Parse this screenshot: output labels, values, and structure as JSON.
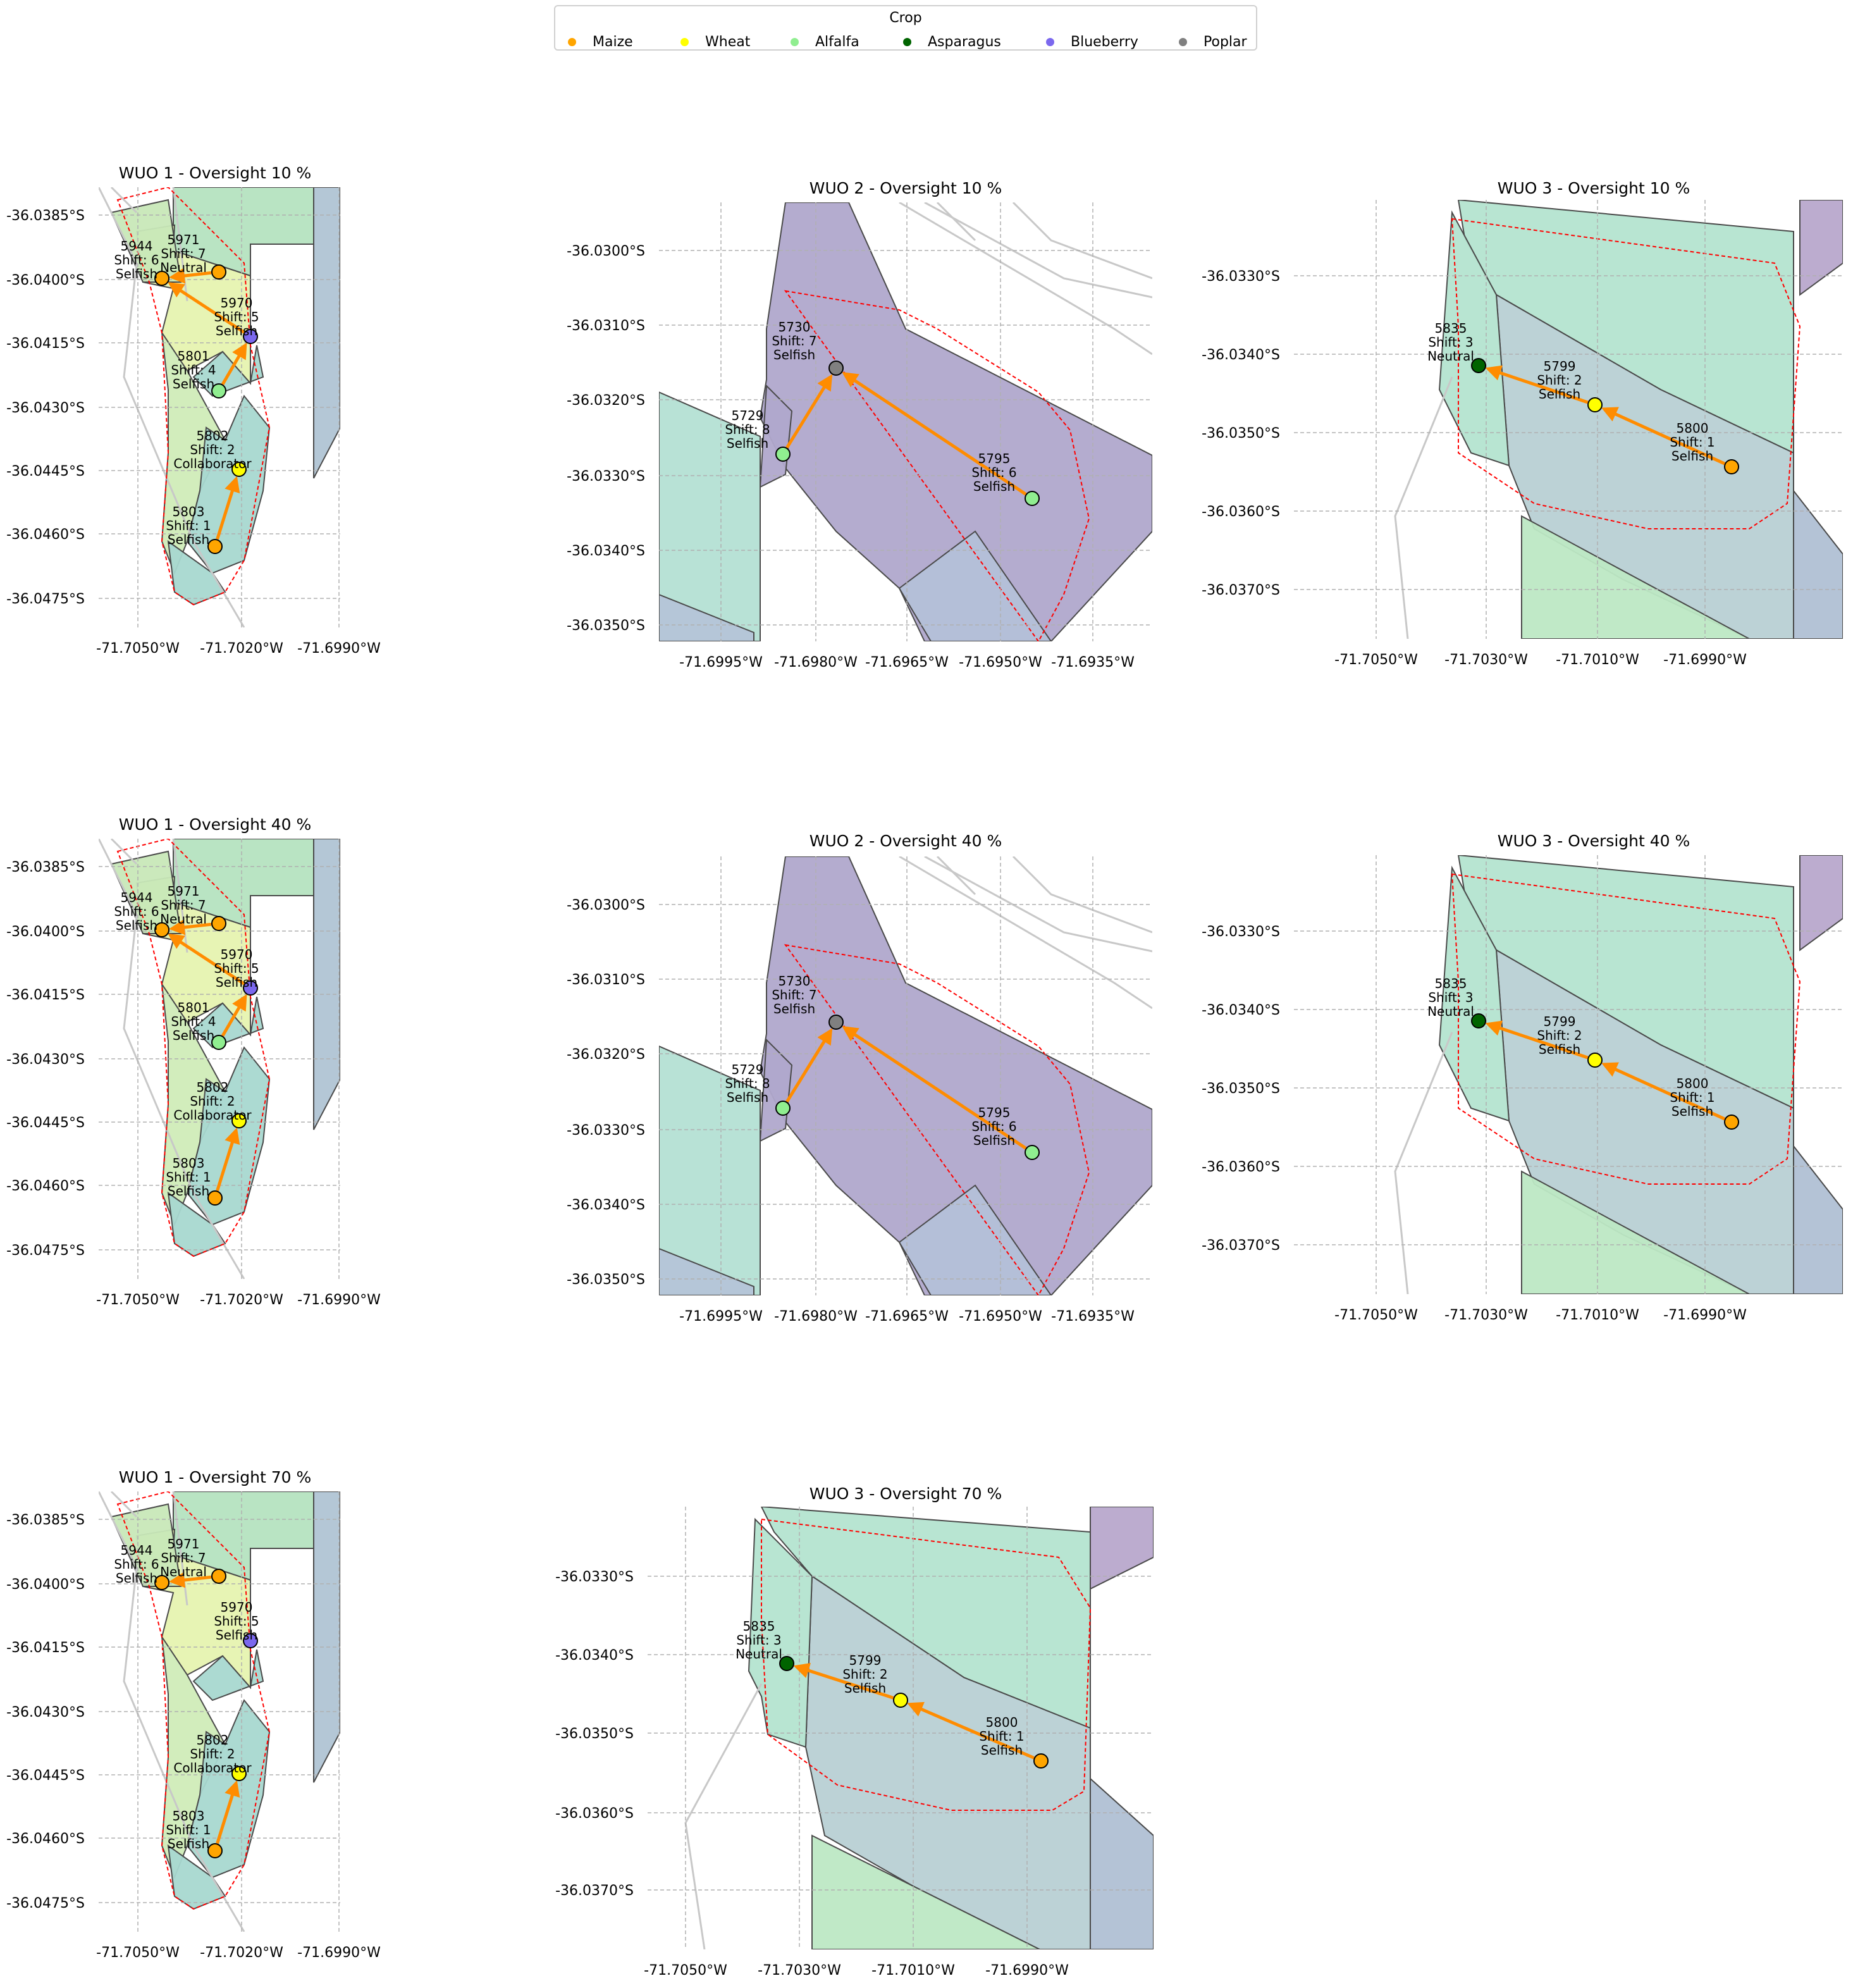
{
  "legend": {
    "title": "Crop",
    "items": [
      {
        "label": "Maize",
        "color": "#ffa500"
      },
      {
        "label": "Wheat",
        "color": "#ffff00"
      },
      {
        "label": "Alfalfa",
        "color": "#90ee90"
      },
      {
        "label": "Asparagus",
        "color": "#006400"
      },
      {
        "label": "Blueberry",
        "color": "#7b68ee"
      },
      {
        "label": "Poplar",
        "color": "#808080"
      }
    ]
  },
  "colors": {
    "arrow": "#ff8c00",
    "boundary": "#ff0000",
    "grid": "#b0b0b0",
    "polygon_edge": "#4a4a4a",
    "road": "#c8c8c8"
  },
  "panels": [
    {
      "id": "wuo1-10",
      "title": "WUO 1 - Oversight 10 %",
      "x_ticks": [
        "-71.7050°W",
        "-71.7020°W",
        "-71.6990°W"
      ],
      "y_ticks": [
        "-36.0385°S",
        "-36.0400°S",
        "-36.0415°S",
        "-36.0430°S",
        "-36.0445°S",
        "-36.0460°S",
        "-36.0475°S"
      ],
      "farms": [
        {
          "id": "5944",
          "shift": "Shift: 6",
          "type": "Selfish",
          "crop": "Maize"
        },
        {
          "id": "5971",
          "shift": "Shift: 7",
          "type": "Neutral",
          "crop": "Maize"
        },
        {
          "id": "5970",
          "shift": "Shift: 5",
          "type": "Selfish",
          "crop": "Blueberry"
        },
        {
          "id": "5801",
          "shift": "Shift: 4",
          "type": "Selfish",
          "crop": "Alfalfa"
        },
        {
          "id": "5802",
          "shift": "Shift: 2",
          "type": "Collaborator",
          "crop": "Wheat"
        },
        {
          "id": "5803",
          "shift": "Shift: 1",
          "type": "Selfish",
          "crop": "Maize"
        }
      ],
      "transfers": [
        [
          "5971",
          "5944"
        ],
        [
          "5970",
          "5944"
        ],
        [
          "5801",
          "5970"
        ],
        [
          "5803",
          "5802"
        ]
      ]
    },
    {
      "id": "wuo2-10",
      "title": "WUO 2 - Oversight 10 %",
      "x_ticks": [
        "-71.6995°W",
        "-71.6980°W",
        "-71.6965°W",
        "-71.6950°W",
        "-71.6935°W"
      ],
      "y_ticks": [
        "-36.0300°S",
        "-36.0310°S",
        "-36.0320°S",
        "-36.0330°S",
        "-36.0340°S",
        "-36.0350°S"
      ],
      "farms": [
        {
          "id": "5730",
          "shift": "Shift: 7",
          "type": "Selfish",
          "crop": "Poplar"
        },
        {
          "id": "5729",
          "shift": "Shift: 8",
          "type": "Selfish",
          "crop": "Alfalfa"
        },
        {
          "id": "5795",
          "shift": "Shift: 6",
          "type": "Selfish",
          "crop": "Alfalfa"
        }
      ],
      "transfers": [
        [
          "5795",
          "5730"
        ],
        [
          "5729",
          "5730"
        ]
      ]
    },
    {
      "id": "wuo3-10",
      "title": "WUO 3 - Oversight 10 %",
      "x_ticks": [
        "-71.7050°W",
        "-71.7030°W",
        "-71.7010°W",
        "-71.6990°W"
      ],
      "y_ticks": [
        "-36.0330°S",
        "-36.0340°S",
        "-36.0350°S",
        "-36.0360°S",
        "-36.0370°S"
      ],
      "farms": [
        {
          "id": "5835",
          "shift": "Shift: 3",
          "type": "Neutral",
          "crop": "Asparagus"
        },
        {
          "id": "5799",
          "shift": "Shift: 2",
          "type": "Selfish",
          "crop": "Wheat"
        },
        {
          "id": "5800",
          "shift": "Shift: 1",
          "type": "Selfish",
          "crop": "Maize"
        }
      ],
      "transfers": [
        [
          "5799",
          "5835"
        ],
        [
          "5800",
          "5799"
        ]
      ]
    },
    {
      "id": "wuo1-40",
      "title": "WUO 1 - Oversight 40 %",
      "x_ticks": [
        "-71.7050°W",
        "-71.7020°W",
        "-71.6990°W"
      ],
      "y_ticks": [
        "-36.0385°S",
        "-36.0400°S",
        "-36.0415°S",
        "-36.0430°S",
        "-36.0445°S",
        "-36.0460°S",
        "-36.0475°S"
      ],
      "farms": [
        {
          "id": "5944",
          "shift": "Shift: 6",
          "type": "Selfish",
          "crop": "Maize"
        },
        {
          "id": "5971",
          "shift": "Shift: 7",
          "type": "Neutral",
          "crop": "Maize"
        },
        {
          "id": "5970",
          "shift": "Shift: 5",
          "type": "Selfish",
          "crop": "Blueberry"
        },
        {
          "id": "5801",
          "shift": "Shift: 4",
          "type": "Selfish",
          "crop": "Alfalfa"
        },
        {
          "id": "5802",
          "shift": "Shift: 2",
          "type": "Collaborator",
          "crop": "Wheat"
        },
        {
          "id": "5803",
          "shift": "Shift: 1",
          "type": "Selfish",
          "crop": "Maize"
        }
      ],
      "transfers": [
        [
          "5971",
          "5944"
        ],
        [
          "5970",
          "5944"
        ],
        [
          "5801",
          "5970"
        ],
        [
          "5803",
          "5802"
        ]
      ]
    },
    {
      "id": "wuo2-40",
      "title": "WUO 2 - Oversight 40 %",
      "x_ticks": [
        "-71.6995°W",
        "-71.6980°W",
        "-71.6965°W",
        "-71.6950°W",
        "-71.6935°W"
      ],
      "y_ticks": [
        "-36.0300°S",
        "-36.0310°S",
        "-36.0320°S",
        "-36.0330°S",
        "-36.0340°S",
        "-36.0350°S"
      ],
      "farms": [
        {
          "id": "5730",
          "shift": "Shift: 7",
          "type": "Selfish",
          "crop": "Poplar"
        },
        {
          "id": "5729",
          "shift": "Shift: 8",
          "type": "Selfish",
          "crop": "Alfalfa"
        },
        {
          "id": "5795",
          "shift": "Shift: 6",
          "type": "Selfish",
          "crop": "Alfalfa"
        }
      ],
      "transfers": [
        [
          "5795",
          "5730"
        ],
        [
          "5729",
          "5730"
        ]
      ]
    },
    {
      "id": "wuo3-40",
      "title": "WUO 3 - Oversight 40 %",
      "x_ticks": [
        "-71.7050°W",
        "-71.7030°W",
        "-71.7010°W",
        "-71.6990°W"
      ],
      "y_ticks": [
        "-36.0330°S",
        "-36.0340°S",
        "-36.0350°S",
        "-36.0360°S",
        "-36.0370°S"
      ],
      "farms": [
        {
          "id": "5835",
          "shift": "Shift: 3",
          "type": "Neutral",
          "crop": "Asparagus"
        },
        {
          "id": "5799",
          "shift": "Shift: 2",
          "type": "Selfish",
          "crop": "Wheat"
        },
        {
          "id": "5800",
          "shift": "Shift: 1",
          "type": "Selfish",
          "crop": "Maize"
        }
      ],
      "transfers": [
        [
          "5799",
          "5835"
        ],
        [
          "5800",
          "5799"
        ]
      ]
    },
    {
      "id": "wuo1-70",
      "title": "WUO 1 - Oversight 70 %",
      "x_ticks": [
        "-71.7050°W",
        "-71.7020°W",
        "-71.6990°W"
      ],
      "y_ticks": [
        "-36.0385°S",
        "-36.0400°S",
        "-36.0415°S",
        "-36.0430°S",
        "-36.0445°S",
        "-36.0460°S",
        "-36.0475°S"
      ],
      "farms": [
        {
          "id": "5944",
          "shift": "Shift: 6",
          "type": "Selfish",
          "crop": "Maize"
        },
        {
          "id": "5971",
          "shift": "Shift: 7",
          "type": "Neutral",
          "crop": "Maize"
        },
        {
          "id": "5970",
          "shift": "Shift: 5",
          "type": "Selfish",
          "crop": "Blueberry"
        },
        {
          "id": "5802",
          "shift": "Shift: 2",
          "type": "Collaborator",
          "crop": "Wheat"
        },
        {
          "id": "5803",
          "shift": "Shift: 1",
          "type": "Selfish",
          "crop": "Maize"
        }
      ],
      "transfers": [
        [
          "5971",
          "5944"
        ],
        [
          "5803",
          "5802"
        ]
      ]
    },
    {
      "id": "wuo3-70",
      "title": "WUO 3 - Oversight 70 %",
      "x_ticks": [
        "-71.7050°W",
        "-71.7030°W",
        "-71.7010°W",
        "-71.6990°W"
      ],
      "y_ticks": [
        "-36.0330°S",
        "-36.0340°S",
        "-36.0350°S",
        "-36.0360°S",
        "-36.0370°S"
      ],
      "farms": [
        {
          "id": "5835",
          "shift": "Shift: 3",
          "type": "Neutral",
          "crop": "Asparagus"
        },
        {
          "id": "5799",
          "shift": "Shift: 2",
          "type": "Selfish",
          "crop": "Wheat"
        },
        {
          "id": "5800",
          "shift": "Shift: 1",
          "type": "Selfish",
          "crop": "Maize"
        }
      ],
      "transfers": [
        [
          "5799",
          "5835"
        ],
        [
          "5800",
          "5799"
        ]
      ]
    }
  ]
}
